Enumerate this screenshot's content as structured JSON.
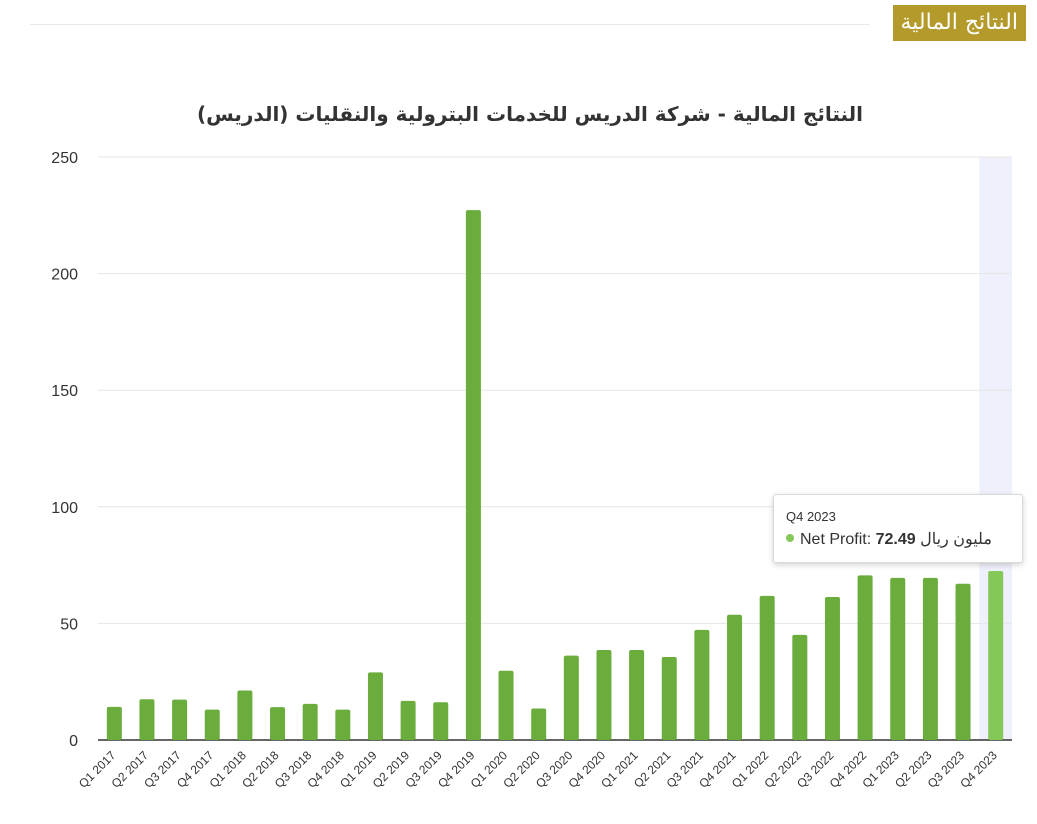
{
  "header": {
    "badge": "النتائج المالية"
  },
  "chart_data": {
    "type": "bar",
    "title": "النتائج المالية - شركة الدريس للخدمات البترولية والنقليات (الدريس)",
    "categories": [
      "Q1 2017",
      "Q2 2017",
      "Q3 2017",
      "Q4 2017",
      "Q1 2018",
      "Q2 2018",
      "Q3 2018",
      "Q4 2018",
      "Q1 2019",
      "Q2 2019",
      "Q3 2019",
      "Q4 2019",
      "Q1 2020",
      "Q2 2020",
      "Q3 2020",
      "Q4 2020",
      "Q1 2021",
      "Q2 2021",
      "Q3 2021",
      "Q4 2021",
      "Q1 2022",
      "Q2 2022",
      "Q3 2022",
      "Q4 2022",
      "Q1 2023",
      "Q2 2023",
      "Q3 2023",
      "Q4 2023"
    ],
    "series": [
      {
        "name": "Net Profit",
        "values": [
          14.2,
          17.5,
          17.3,
          13.0,
          21.2,
          14.1,
          15.5,
          13.0,
          29.0,
          16.8,
          16.2,
          227.2,
          29.7,
          13.5,
          36.2,
          38.6,
          38.6,
          35.6,
          47.2,
          53.7,
          61.8,
          45.1,
          61.3,
          70.6,
          69.5,
          69.5,
          67.0,
          72.49
        ]
      }
    ],
    "ylim": [
      0,
      250
    ],
    "yticks": [
      0,
      50,
      100,
      150,
      200,
      250
    ],
    "grid": true,
    "colors": {
      "bar": "#6aad3d",
      "bar_highlight": "#84c957",
      "hover_band": "#eef0fc",
      "grid": "#e6e6e6",
      "text": "#333333"
    }
  },
  "tooltip": {
    "category": "Q4 2023",
    "series_label": "Net Profit: ",
    "value": "72.49",
    "unit": " مليون ريال"
  }
}
